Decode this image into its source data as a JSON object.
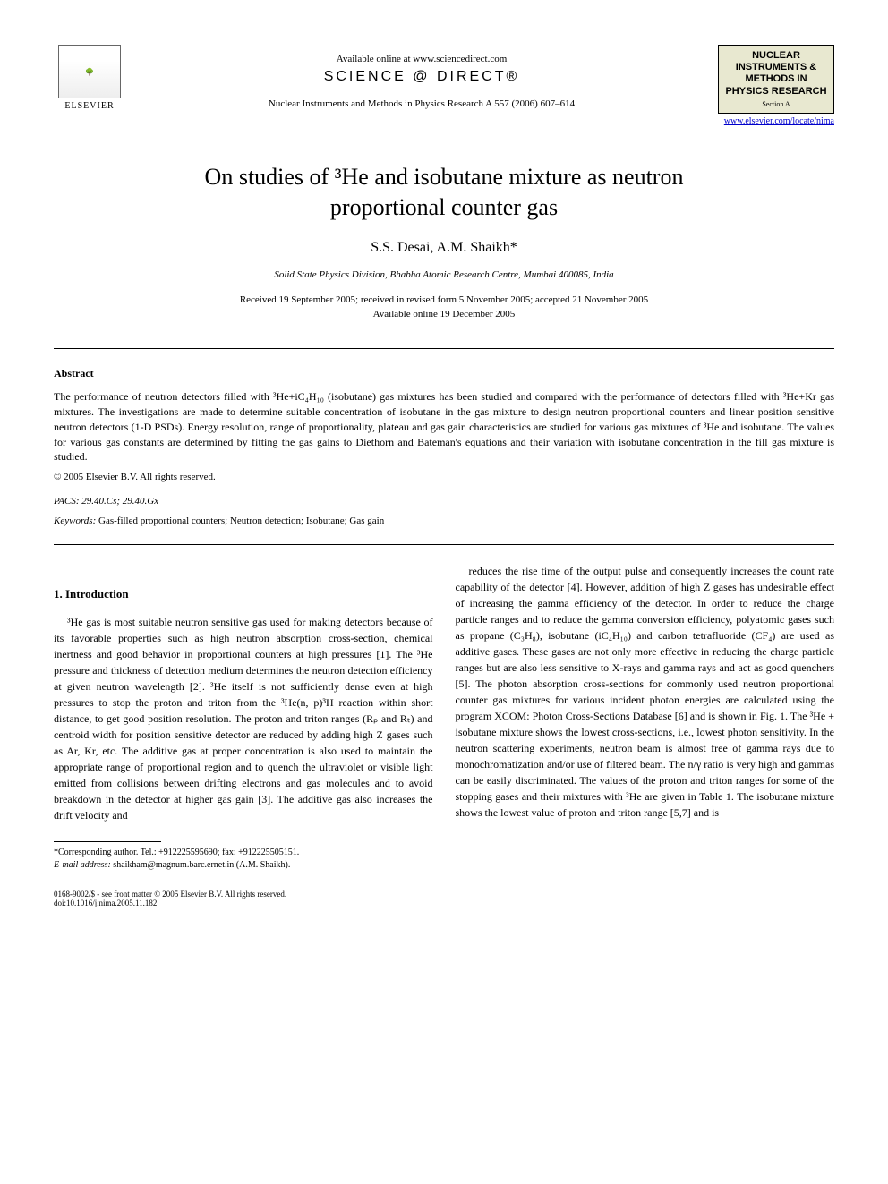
{
  "header": {
    "available_online": "Available online at www.sciencedirect.com",
    "science_direct": "SCIENCE @ DIRECT®",
    "journal_ref": "Nuclear Instruments and Methods in Physics Research A 557 (2006) 607–614",
    "elsevier_label": "ELSEVIER",
    "journal_box_title": "NUCLEAR INSTRUMENTS & METHODS IN PHYSICS RESEARCH",
    "journal_box_section": "Section A",
    "journal_link": "www.elsevier.com/locate/nima"
  },
  "article": {
    "title_line1": "On studies of ³He and isobutane mixture as neutron",
    "title_line2": "proportional counter gas",
    "authors": "S.S. Desai, A.M. Shaikh*",
    "affiliation": "Solid State Physics Division, Bhabha Atomic Research Centre, Mumbai 400085, India",
    "dates_line1": "Received 19 September 2005; received in revised form 5 November 2005; accepted 21 November 2005",
    "dates_line2": "Available online 19 December 2005"
  },
  "abstract": {
    "heading": "Abstract",
    "text": "The performance of neutron detectors filled with ³He+iC₄H₁₀ (isobutane) gas mixtures has been studied and compared with the performance of detectors filled with ³He+Kr gas mixtures. The investigations are made to determine suitable concentration of isobutane in the gas mixture to design neutron proportional counters and linear position sensitive neutron detectors (1-D PSDs). Energy resolution, range of proportionality, plateau and gas gain characteristics are studied for various gas mixtures of ³He and isobutane. The values for various gas constants are determined by fitting the gas gains to Diethorn and Bateman's equations and their variation with isobutane concentration in the fill gas mixture is studied.",
    "copyright": "© 2005 Elsevier B.V. All rights reserved.",
    "pacs": "PACS: 29.40.Cs; 29.40.Gx",
    "keywords_label": "Keywords:",
    "keywords": " Gas-filled proportional counters; Neutron detection; Isobutane; Gas gain"
  },
  "body": {
    "section1_heading": "1. Introduction",
    "col1_text": "³He gas is most suitable neutron sensitive gas used for making detectors because of its favorable properties such as high neutron absorption cross-section, chemical inertness and good behavior in proportional counters at high pressures [1]. The ³He pressure and thickness of detection medium determines the neutron detection efficiency at given neutron wavelength [2]. ³He itself is not sufficiently dense even at high pressures to stop the proton and triton from the ³He(n, p)³H reaction within short distance, to get good position resolution. The proton and triton ranges (Rₚ and Rₜ) and centroid width for position sensitive detector are reduced by adding high Z gases such as Ar, Kr, etc. The additive gas at proper concentration is also used to maintain the appropriate range of proportional region and to quench the ultraviolet or visible light emitted from collisions between drifting electrons and gas molecules and to avoid breakdown in the detector at higher gas gain [3]. The additive gas also increases the drift velocity and",
    "col2_text": "reduces the rise time of the output pulse and consequently increases the count rate capability of the detector [4]. However, addition of high Z gases has undesirable effect of increasing the gamma efficiency of the detector. In order to reduce the charge particle ranges and to reduce the gamma conversion efficiency, polyatomic gases such as propane (C₃H₈), isobutane (iC₄H₁₀) and carbon tetrafluoride (CF₄) are used as additive gases. These gases are not only more effective in reducing the charge particle ranges but are also less sensitive to X-rays and gamma rays and act as good quenchers [5]. The photon absorption cross-sections for commonly used neutron proportional counter gas mixtures for various incident photon energies are calculated using the program XCOM: Photon Cross-Sections Database [6] and is shown in Fig. 1. The ³He + isobutane mixture shows the lowest cross-sections, i.e., lowest photon sensitivity. In the neutron scattering experiments, neutron beam is almost free of gamma rays due to monochromatization and/or use of filtered beam. The n/γ ratio is very high and gammas can be easily discriminated. The values of the proton and triton ranges for some of the stopping gases and their mixtures with ³He are given in Table 1. The isobutane mixture shows the lowest value of proton and triton range [5,7] and is"
  },
  "footnote": {
    "corresponding": "*Corresponding author. Tel.: +912225595690; fax: +912225505151.",
    "email_label": "E-mail address:",
    "email": " shaikham@magnum.barc.ernet.in (A.M. Shaikh)."
  },
  "footer": {
    "left": "0168-9002/$ - see front matter © 2005 Elsevier B.V. All rights reserved.",
    "doi": "doi:10.1016/j.nima.2005.11.182"
  },
  "colors": {
    "link": "#0000cc",
    "text": "#000000",
    "background": "#ffffff",
    "journal_box_bg": "#e8e8d0"
  }
}
